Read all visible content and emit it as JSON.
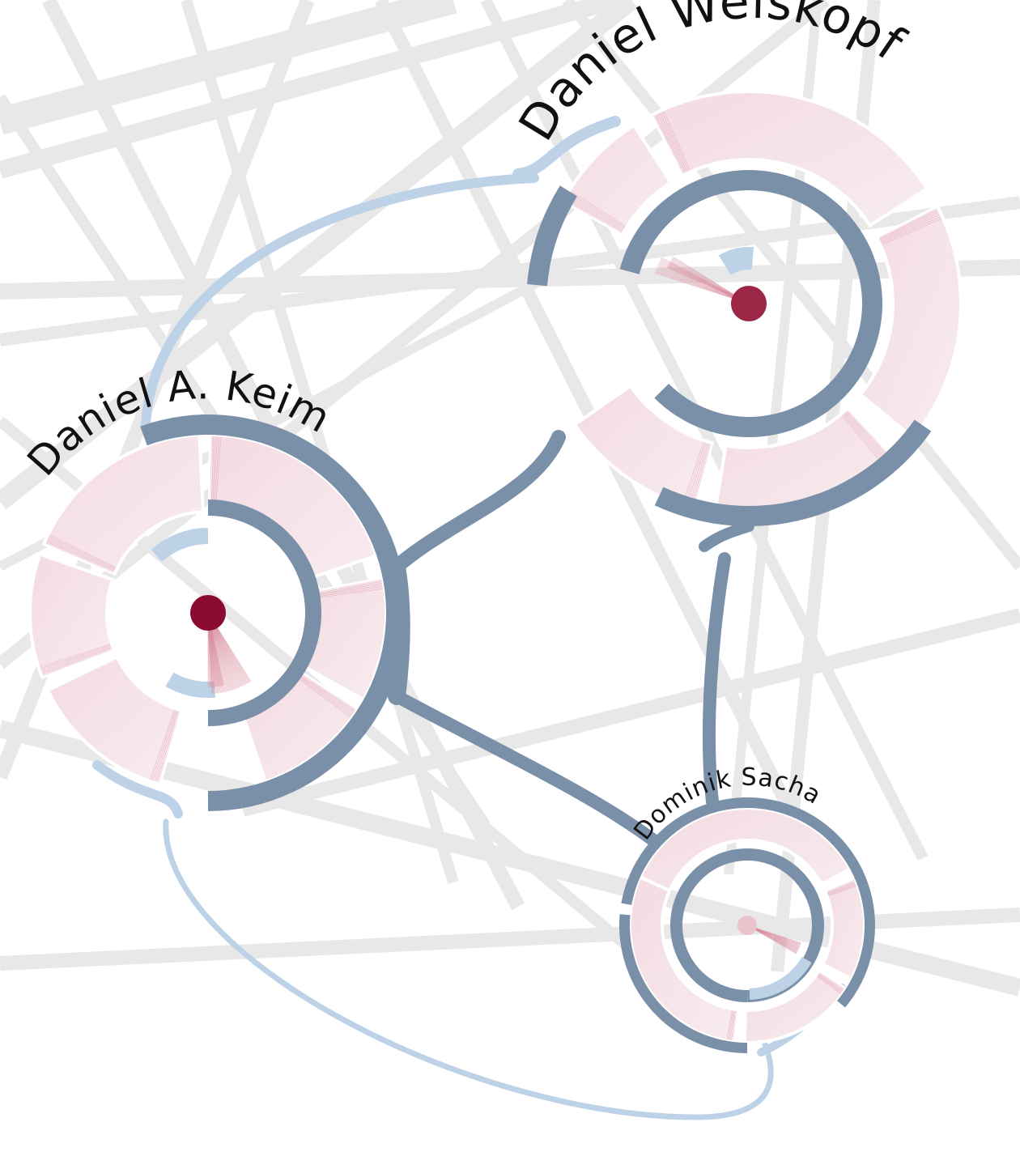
{
  "nodes": [
    {
      "id": "weiskopf",
      "label": "Daniel Weiskopf",
      "center_color": "#9b2645"
    },
    {
      "id": "keim",
      "label": "Daniel A. Keim",
      "center_color": "#8a0a30"
    },
    {
      "id": "sacha",
      "label": "Dominik Sacha",
      "center_color": "#e8c3cb"
    }
  ],
  "edges": [
    {
      "from": "weiskopf",
      "to": "keim",
      "kind": "strong"
    },
    {
      "from": "weiskopf",
      "to": "sacha",
      "kind": "strong"
    },
    {
      "from": "keim",
      "to": "sacha",
      "kind": "strong"
    },
    {
      "from": "weiskopf",
      "to": "keim",
      "kind": "weak"
    },
    {
      "from": "keim",
      "to": "sacha",
      "kind": "weak"
    }
  ],
  "colors": {
    "strong_link": "#7a8fa8",
    "weak_link": "#bdd2e6",
    "segment_fill": "#f5e2e6",
    "segment_stripe": "#d98a9d",
    "background_link": "#e8e8e8"
  }
}
